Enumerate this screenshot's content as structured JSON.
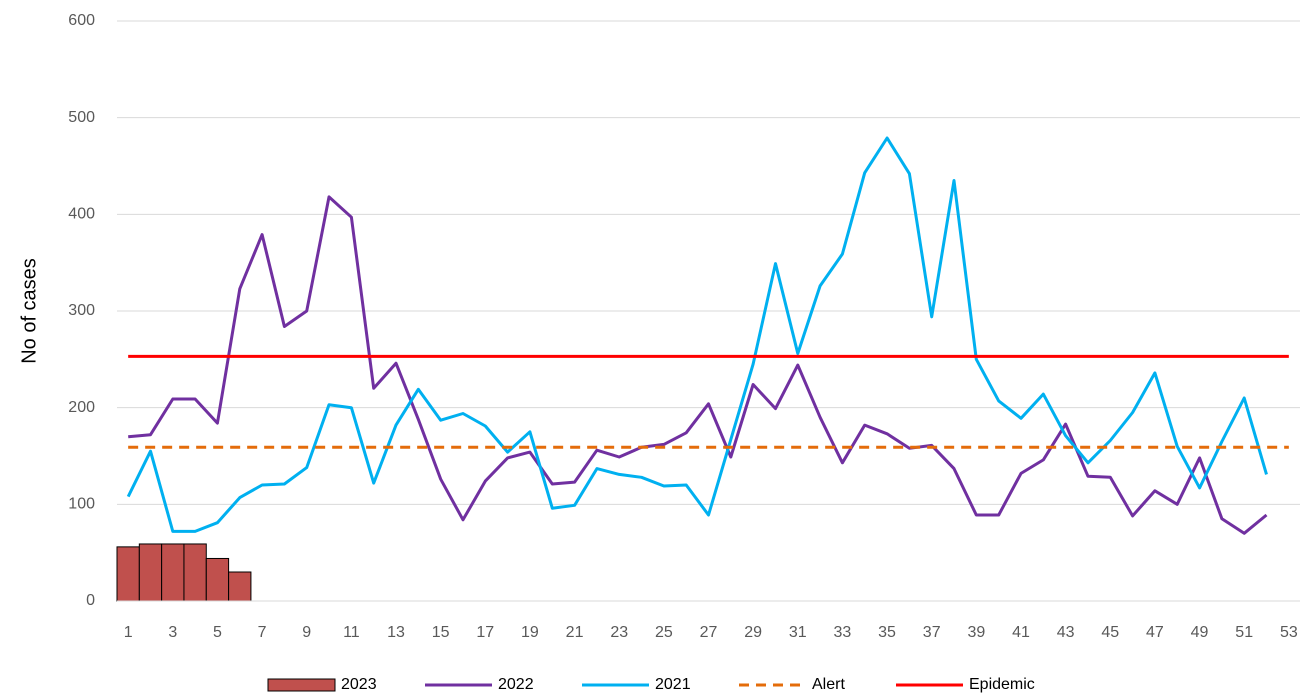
{
  "chart_data": {
    "type": "combo",
    "y_label": "No of cases",
    "categories": [
      1,
      null,
      3,
      null,
      5,
      null,
      7,
      null,
      9,
      null,
      11,
      null,
      13,
      null,
      15,
      null,
      17,
      null,
      19,
      null,
      21,
      null,
      23,
      null,
      25,
      null,
      27,
      null,
      29,
      null,
      31,
      null,
      33,
      null,
      35,
      null,
      37,
      null,
      39,
      null,
      41,
      null,
      43,
      null,
      45,
      null,
      47,
      null,
      49,
      null,
      51,
      null,
      53
    ],
    "series": [
      {
        "name": "2023",
        "type": "bar",
        "color": "#c0504d",
        "values": [
          56,
          59,
          59,
          59,
          44,
          30,
          null,
          null,
          null,
          null,
          null,
          null,
          null,
          null,
          null,
          null,
          null,
          null,
          null,
          null,
          null,
          null,
          null,
          null,
          null,
          null,
          null,
          null,
          null,
          null,
          null,
          null,
          null,
          null,
          null,
          null,
          null,
          null,
          null,
          null,
          null,
          null,
          null,
          null,
          null,
          null,
          null,
          null,
          null,
          null,
          null,
          null,
          null
        ]
      },
      {
        "name": "2022",
        "type": "line",
        "color": "#7030a0",
        "values": [
          170,
          172,
          209,
          209,
          184,
          323,
          379,
          284,
          300,
          418,
          397,
          220,
          246,
          188,
          126,
          84,
          124,
          148,
          154,
          121,
          123,
          156,
          149,
          159,
          162,
          174,
          204,
          149,
          224,
          199,
          244,
          190,
          143,
          182,
          173,
          158,
          161,
          137,
          89,
          89,
          132,
          146,
          183,
          129,
          128,
          88,
          114,
          100,
          148,
          85,
          70,
          89,
          null
        ]
      },
      {
        "name": "2021",
        "type": "line",
        "color": "#00b0f0",
        "values": [
          108,
          155,
          72,
          72,
          81,
          107,
          120,
          121,
          138,
          203,
          200,
          122,
          182,
          219,
          187,
          194,
          181,
          154,
          175,
          96,
          99,
          137,
          131,
          128,
          119,
          120,
          89,
          167,
          245,
          349,
          256,
          326,
          359,
          443,
          479,
          442,
          294,
          435,
          250,
          207,
          189,
          214,
          171,
          143,
          166,
          195,
          236,
          160,
          117,
          165,
          210,
          131,
          null
        ]
      },
      {
        "name": "Alert",
        "type": "hline",
        "dashed": true,
        "color": "#e46c0a",
        "value": 159
      },
      {
        "name": "Epidemic",
        "type": "hline",
        "dashed": false,
        "color": "#ff0000",
        "value": 253
      }
    ],
    "ylim": [
      0,
      600
    ],
    "yticks": [
      0,
      100,
      200,
      300,
      400,
      500,
      600
    ],
    "grid": true,
    "legend": "bottom"
  }
}
